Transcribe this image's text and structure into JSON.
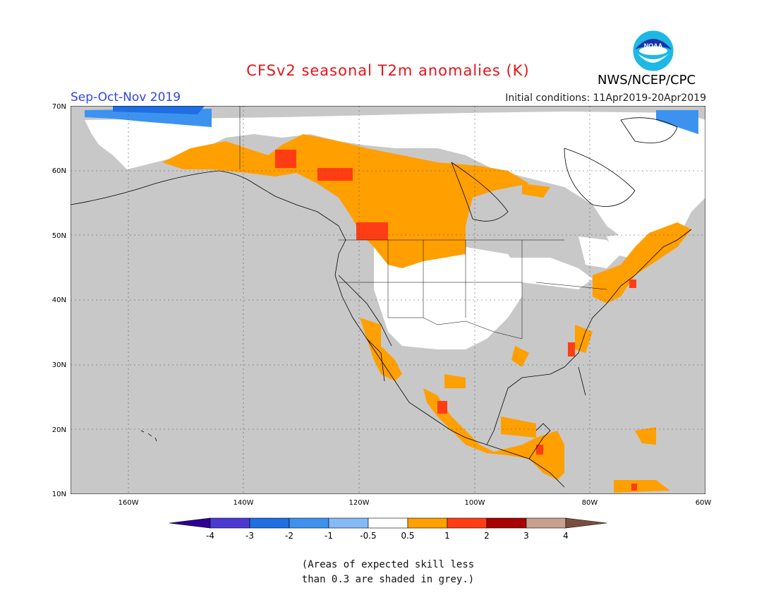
{
  "header": {
    "title": "CFSv2 seasonal T2m anomalies (K)",
    "season": "Sep-Oct-Nov 2019",
    "initial_conditions": "Initial conditions: 11Apr2019-20Apr2019",
    "organization": "NWS/NCEP/CPC",
    "logo_text": "NOAA"
  },
  "map": {
    "lat_labels": [
      "70N",
      "60N",
      "50N",
      "40N",
      "30N",
      "20N",
      "10N"
    ],
    "lon_labels": [
      "160W",
      "140W",
      "120W",
      "100W",
      "80W",
      "60W"
    ],
    "lat_range": [
      10,
      70
    ],
    "lon_range": [
      -170,
      -60
    ],
    "grid": true
  },
  "colorbar": {
    "tick_labels": [
      "-4",
      "-3",
      "-2",
      "-1",
      "-0.5",
      "0.5",
      "1",
      "2",
      "3",
      "4"
    ],
    "colors": [
      "#2d0096",
      "#4b3ad2",
      "#1f6ee2",
      "#3d92ef",
      "#86baf5",
      "#ffffff",
      "#ff9f00",
      "#ff3d14",
      "#a80000",
      "#c8a090",
      "#7b4f3f"
    ]
  },
  "note": {
    "line1": "(Areas of expected skill less",
    "line2": "than 0.3 are shaded in grey.)"
  },
  "colors": {
    "grey_low_skill": "#c8c8c8",
    "title_red": "#e8141a",
    "season_blue": "#2f43f2"
  }
}
